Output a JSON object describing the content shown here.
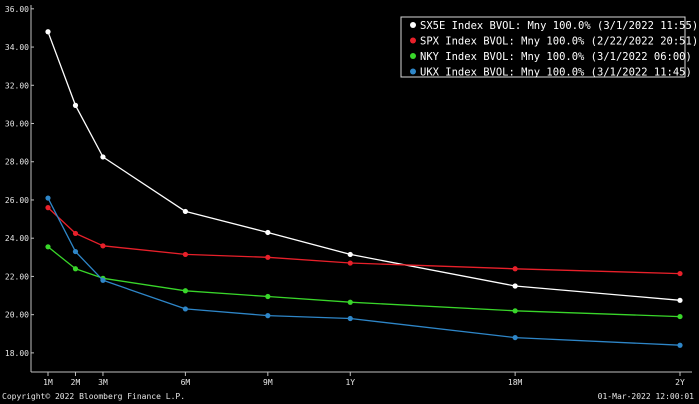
{
  "chart_data": {
    "type": "line",
    "title": "",
    "xlabel": "",
    "ylabel": "",
    "x_categories": [
      "1M",
      "2M",
      "3M",
      "6M",
      "9M",
      "1Y",
      "18M",
      "2Y"
    ],
    "x_months": [
      1,
      2,
      3,
      6,
      9,
      12,
      18,
      24
    ],
    "ylim": [
      17,
      36.2
    ],
    "y_ticks": [
      "36.00",
      "34.00",
      "32.00",
      "30.00",
      "28.00",
      "26.00",
      "24.00",
      "22.00",
      "20.00",
      "18.00"
    ],
    "y_tick_values": [
      36,
      34,
      32,
      30,
      28,
      26,
      24,
      22,
      20,
      18
    ],
    "grid": false,
    "legend_position": "top-right",
    "series": [
      {
        "name": "SX5E Index BVOL: Mny 100.0% (3/1/2022 11:55)",
        "color": "#ffffff",
        "values": [
          34.8,
          30.95,
          28.25,
          25.4,
          24.3,
          23.15,
          21.5,
          20.75
        ]
      },
      {
        "name": "SPX Index BVOL: Mny 100.0% (2/22/2022 20:51)",
        "color": "#e8202a",
        "values": [
          25.6,
          24.25,
          23.6,
          23.15,
          23.0,
          22.7,
          22.4,
          22.15
        ]
      },
      {
        "name": "NKY Index BVOL: Mny 100.0% (3/1/2022 06:00)",
        "color": "#39d62a",
        "values": [
          23.55,
          22.4,
          21.9,
          21.25,
          20.95,
          20.65,
          20.2,
          19.9
        ]
      },
      {
        "name": "UKX Index BVOL: Mny 100.0% (3/1/2022 11:45)",
        "color": "#2e86c8",
        "values": [
          26.1,
          23.3,
          21.8,
          20.3,
          19.95,
          19.8,
          18.8,
          18.4
        ]
      }
    ]
  },
  "footer": {
    "copyright": "Copyright© 2022 Bloomberg Finance L.P.",
    "timestamp": "01-Mar-2022 12:00:01"
  }
}
